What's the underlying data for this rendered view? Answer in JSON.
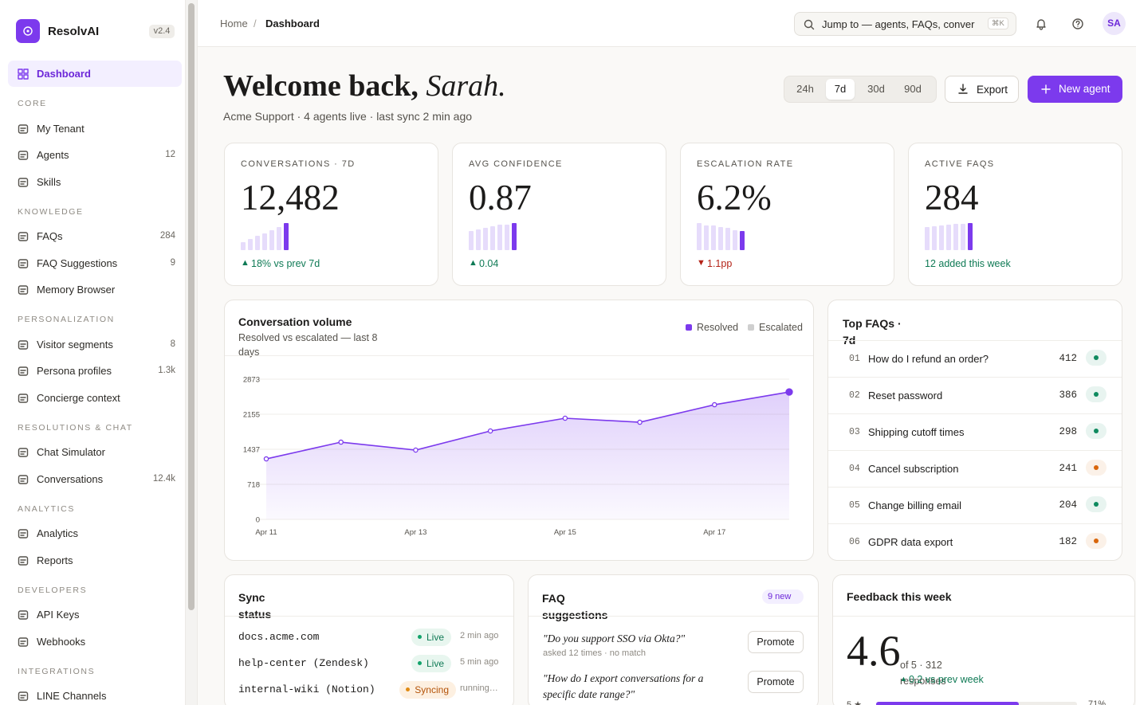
{
  "sidebar": {
    "brand": "ResolvAI",
    "version": "v2.4",
    "home_item": "Dashboard",
    "sections": [
      {
        "label": "CORE",
        "items": [
          {
            "label": "My Tenant"
          },
          {
            "label": "Agents",
            "count": 12
          },
          {
            "label": "Skills"
          }
        ]
      },
      {
        "label": "KNOWLEDGE",
        "items": [
          {
            "label": "FAQs",
            "count": 284
          },
          {
            "label": "FAQ Suggestions",
            "count": 9
          },
          {
            "label": "Memory Browser"
          }
        ]
      },
      {
        "label": "PERSONALIZATION",
        "items": [
          {
            "label": "Visitor segments",
            "count": 8
          },
          {
            "label": "Persona profiles",
            "count": "1.3k"
          },
          {
            "label": "Concierge context"
          }
        ]
      },
      {
        "label": "RESOLUTIONS & CHAT",
        "items": [
          {
            "label": "Chat Simulator"
          },
          {
            "label": "Conversations",
            "count": "12.4k"
          }
        ]
      },
      {
        "label": "ANALYTICS",
        "items": [
          {
            "label": "Analytics"
          },
          {
            "label": "Reports"
          }
        ]
      },
      {
        "label": "DEVELOPERS",
        "items": [
          {
            "label": "API Keys"
          },
          {
            "label": "Webhooks"
          }
        ]
      },
      {
        "label": "INTEGRATIONS",
        "items": [
          {
            "label": "LINE Channels"
          }
        ]
      }
    ]
  },
  "topbar": {
    "breadcrumb": [
      "Home",
      "Dashboard"
    ],
    "separator": "/",
    "search_placeholder": "Jump to — agents, FAQs, conver",
    "shortcut": "⌘K",
    "avatar": "SA"
  },
  "welcome": {
    "greeting": "Welcome back,",
    "name": "Sarah.",
    "subtitle": "Acme Support · 4 agents live · last sync 2 min ago",
    "ranges": [
      "24h",
      "7d",
      "30d",
      "90d"
    ],
    "active_range": "7d",
    "export": "Export",
    "new_agent": "New agent"
  },
  "kpis": [
    {
      "label": "CONVERSATIONS · 7D",
      "value": "12,482",
      "arrow": "▲",
      "delta": "18% vs prev 7d",
      "delta_color": "#0f7a55",
      "spark": [
        10,
        14,
        18,
        21,
        25,
        29,
        34
      ]
    },
    {
      "label": "AVG CONFIDENCE",
      "value": "0.87",
      "arrow": "▲",
      "delta": "0.04",
      "delta_color": "#0f7a55",
      "spark": [
        24,
        26,
        28,
        30,
        32,
        32,
        34
      ]
    },
    {
      "label": "ESCALATION RATE",
      "value": "6.2%",
      "arrow": "▼",
      "delta": "1.1pp",
      "delta_color": "#b42318",
      "spark": [
        34,
        31,
        31,
        29,
        28,
        25,
        24
      ]
    },
    {
      "label": "ACTIVE FAQS",
      "value": "284",
      "delta": "12 added this week",
      "delta_color": "#0f7a55",
      "spark": [
        29,
        30,
        31,
        32,
        33,
        33,
        34
      ]
    }
  ],
  "chart_data": {
    "type": "line",
    "title": "Conversation volume",
    "subtitle": "Resolved vs escalated — last 8 days",
    "categories": [
      "Apr 11",
      null,
      "Apr 13",
      null,
      "Apr 15",
      null,
      "Apr 17",
      null
    ],
    "series": [
      {
        "name": "Resolved",
        "color": "#7c3aed",
        "values": [
          1240,
          1583,
          1420,
          1812,
          2073,
          1991,
          2350,
          2611
        ]
      },
      {
        "name": "Escalated",
        "color": "#cfcfcf",
        "values": [
          null,
          null,
          null,
          null,
          null,
          null,
          null,
          null
        ]
      }
    ],
    "ylim": [
      0,
      2873
    ],
    "yticks": [
      0,
      718,
      1437,
      2155,
      2873
    ],
    "grid": true
  },
  "top_faqs": {
    "title": "Top FAQs · 7d",
    "rows": [
      {
        "rank": "01",
        "question": "How do I refund an order?",
        "count": 412,
        "dot_color": "#0f8a5f"
      },
      {
        "rank": "02",
        "question": "Reset password",
        "count": 386,
        "dot_color": "#0f8a5f"
      },
      {
        "rank": "03",
        "question": "Shipping cutoff times",
        "count": 298,
        "dot_color": "#0f8a5f"
      },
      {
        "rank": "04",
        "question": "Cancel subscription",
        "count": 241,
        "dot_color": "#d9660b"
      },
      {
        "rank": "05",
        "question": "Change billing email",
        "count": 204,
        "dot_color": "#0f8a5f"
      },
      {
        "rank": "06",
        "question": "GDPR data export",
        "count": 182,
        "dot_color": "#d9660b"
      }
    ]
  },
  "sync": {
    "title": "Sync status",
    "rows": [
      {
        "source": "docs.acme.com",
        "status": "Live",
        "time": "2 min ago"
      },
      {
        "source": "help-center (Zendesk)",
        "status": "Live",
        "time": "5 min ago"
      },
      {
        "source": "internal-wiki (Notion)",
        "status": "Syncing",
        "time": "running…"
      }
    ]
  },
  "faq_suggestions": {
    "title": "FAQ suggestions",
    "badge": "9 new",
    "items": [
      {
        "question": "\"Do you support SSO via Okta?\"",
        "meta": "asked 12 times · no match",
        "action": "Promote"
      },
      {
        "question": "\"How do I export conversations for a specific date range?\"",
        "action": "Promote"
      }
    ]
  },
  "feedback": {
    "title": "Feedback this week",
    "score": "4.6",
    "scale": "of 5 · 312 responses",
    "delta_arrow": "▲",
    "delta": "0.2 vs prev week",
    "rows": [
      {
        "stars": "5 ★",
        "value": 71,
        "value_label": "71%"
      }
    ]
  }
}
